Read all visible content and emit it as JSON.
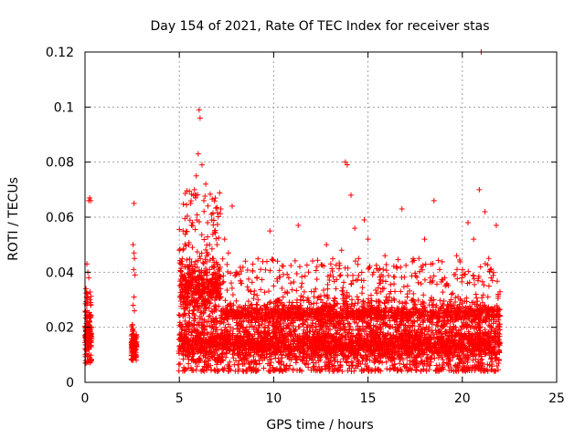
{
  "chart_data": {
    "type": "scatter",
    "title": "Day 154 of 2021, Rate Of TEC Index for receiver stas",
    "xlabel": "GPS time / hours",
    "ylabel": "ROTI / TECUs",
    "xlim": [
      0,
      25
    ],
    "ylim": [
      0,
      0.12
    ],
    "xticks": [
      0,
      5,
      10,
      15,
      20,
      25
    ],
    "yticks": [
      0,
      0.02,
      0.04,
      0.06,
      0.08,
      0.1,
      0.12
    ],
    "xtick_labels": [
      "0",
      "5",
      "10",
      "15",
      "20",
      "25"
    ],
    "ytick_labels": [
      "0",
      "0.02",
      "0.04",
      "0.06",
      "0.08",
      "0.1",
      "0.12"
    ],
    "grid": true,
    "marker": "+",
    "marker_color": "#ff0000",
    "series": [
      {
        "name": "ROTI",
        "points": [
          [
            0.05,
            0.034
          ],
          [
            0.08,
            0.031
          ],
          [
            0.1,
            0.026
          ],
          [
            0.12,
            0.022
          ],
          [
            0.15,
            0.019
          ],
          [
            0.18,
            0.014
          ],
          [
            0.2,
            0.012
          ],
          [
            0.22,
            0.01
          ],
          [
            0.25,
            0.009
          ],
          [
            0.28,
            0.008
          ],
          [
            0.1,
            0.043
          ],
          [
            0.15,
            0.04
          ],
          [
            0.2,
            0.038
          ],
          [
            0.25,
            0.03
          ],
          [
            0.3,
            0.028
          ],
          [
            0.2,
            0.066
          ],
          [
            0.25,
            0.067
          ],
          [
            0.3,
            0.066
          ],
          [
            0.12,
            0.016
          ],
          [
            0.18,
            0.018
          ],
          [
            0.24,
            0.015
          ],
          [
            0.3,
            0.013
          ],
          [
            2.55,
            0.05
          ],
          [
            2.6,
            0.047
          ],
          [
            2.62,
            0.045
          ],
          [
            2.58,
            0.041
          ],
          [
            2.65,
            0.039
          ],
          [
            2.6,
            0.031
          ],
          [
            2.55,
            0.028
          ],
          [
            2.62,
            0.026
          ],
          [
            2.6,
            0.065
          ],
          [
            2.52,
            0.019
          ],
          [
            2.56,
            0.016
          ],
          [
            2.6,
            0.014
          ],
          [
            2.64,
            0.012
          ],
          [
            2.68,
            0.01
          ],
          [
            2.58,
            0.009
          ],
          [
            2.66,
            0.013
          ],
          [
            2.7,
            0.017
          ],
          [
            5.0,
            0.048
          ],
          [
            5.1,
            0.035
          ],
          [
            5.2,
            0.055
          ],
          [
            5.3,
            0.042
          ],
          [
            5.4,
            0.031
          ],
          [
            5.5,
            0.05
          ],
          [
            5.6,
            0.065
          ],
          [
            5.7,
            0.058
          ],
          [
            5.8,
            0.07
          ],
          [
            5.9,
            0.075
          ],
          [
            6.0,
            0.083
          ],
          [
            6.05,
            0.099
          ],
          [
            6.1,
            0.096
          ],
          [
            6.2,
            0.079
          ],
          [
            6.3,
            0.066
          ],
          [
            6.4,
            0.072
          ],
          [
            6.5,
            0.058
          ],
          [
            6.6,
            0.05
          ],
          [
            6.7,
            0.061
          ],
          [
            6.8,
            0.045
          ],
          [
            6.9,
            0.038
          ],
          [
            7.0,
            0.05
          ],
          [
            7.2,
            0.063
          ],
          [
            7.4,
            0.052
          ],
          [
            7.6,
            0.047
          ],
          [
            7.8,
            0.064
          ],
          [
            8.0,
            0.04
          ],
          [
            8.3,
            0.036
          ],
          [
            8.5,
            0.044
          ],
          [
            8.8,
            0.033
          ],
          [
            5.1,
            0.018
          ],
          [
            5.3,
            0.015
          ],
          [
            5.5,
            0.021
          ],
          [
            5.7,
            0.013
          ],
          [
            5.9,
            0.017
          ],
          [
            6.1,
            0.024
          ],
          [
            6.3,
            0.019
          ],
          [
            6.5,
            0.014
          ],
          [
            6.7,
            0.022
          ],
          [
            6.9,
            0.016
          ],
          [
            7.1,
            0.012
          ],
          [
            7.3,
            0.018
          ],
          [
            7.5,
            0.015
          ],
          [
            7.7,
            0.02
          ],
          [
            7.9,
            0.013
          ],
          [
            8.1,
            0.017
          ],
          [
            8.3,
            0.014
          ],
          [
            8.5,
            0.019
          ],
          [
            8.7,
            0.012
          ],
          [
            8.9,
            0.016
          ],
          [
            9.2,
            0.022
          ],
          [
            9.5,
            0.028
          ],
          [
            9.8,
            0.055
          ],
          [
            10.0,
            0.035
          ],
          [
            10.2,
            0.044
          ],
          [
            10.5,
            0.031
          ],
          [
            10.8,
            0.038
          ],
          [
            11.0,
            0.029
          ],
          [
            11.3,
            0.057
          ],
          [
            11.5,
            0.036
          ],
          [
            11.8,
            0.027
          ],
          [
            12.0,
            0.033
          ],
          [
            12.3,
            0.042
          ],
          [
            12.5,
            0.03
          ],
          [
            12.8,
            0.05
          ],
          [
            13.0,
            0.039
          ],
          [
            13.3,
            0.034
          ],
          [
            13.6,
            0.048
          ],
          [
            13.8,
            0.08
          ],
          [
            13.9,
            0.079
          ],
          [
            14.1,
            0.068
          ],
          [
            14.3,
            0.056
          ],
          [
            14.5,
            0.045
          ],
          [
            14.8,
            0.059
          ],
          [
            15.0,
            0.052
          ],
          [
            15.3,
            0.04
          ],
          [
            15.6,
            0.036
          ],
          [
            15.9,
            0.046
          ],
          [
            16.2,
            0.033
          ],
          [
            16.5,
            0.042
          ],
          [
            16.8,
            0.063
          ],
          [
            17.1,
            0.035
          ],
          [
            17.4,
            0.03
          ],
          [
            17.7,
            0.045
          ],
          [
            18.0,
            0.052
          ],
          [
            18.3,
            0.038
          ],
          [
            18.5,
            0.066
          ],
          [
            18.8,
            0.041
          ],
          [
            19.1,
            0.035
          ],
          [
            19.4,
            0.03
          ],
          [
            19.7,
            0.046
          ],
          [
            20.0,
            0.039
          ],
          [
            20.3,
            0.058
          ],
          [
            20.6,
            0.052
          ],
          [
            20.9,
            0.07
          ],
          [
            21.0,
            0.12
          ],
          [
            21.2,
            0.062
          ],
          [
            21.4,
            0.045
          ],
          [
            21.6,
            0.037
          ],
          [
            21.8,
            0.057
          ],
          [
            21.9,
            0.032
          ],
          [
            9.1,
            0.015
          ],
          [
            9.4,
            0.011
          ],
          [
            9.7,
            0.018
          ],
          [
            10.0,
            0.014
          ],
          [
            10.3,
            0.021
          ],
          [
            10.6,
            0.013
          ],
          [
            10.9,
            0.017
          ],
          [
            11.2,
            0.009
          ],
          [
            11.5,
            0.016
          ],
          [
            11.8,
            0.02
          ],
          [
            12.1,
            0.012
          ],
          [
            12.4,
            0.018
          ],
          [
            12.7,
            0.015
          ],
          [
            13.0,
            0.022
          ],
          [
            13.3,
            0.011
          ],
          [
            13.6,
            0.017
          ],
          [
            13.9,
            0.014
          ],
          [
            14.2,
            0.019
          ],
          [
            14.5,
            0.012
          ],
          [
            14.8,
            0.016
          ],
          [
            15.1,
            0.008
          ],
          [
            15.4,
            0.018
          ],
          [
            15.7,
            0.013
          ],
          [
            16.0,
            0.021
          ],
          [
            16.3,
            0.011
          ],
          [
            16.6,
            0.015
          ],
          [
            16.9,
            0.019
          ],
          [
            17.2,
            0.012
          ],
          [
            17.5,
            0.017
          ],
          [
            17.8,
            0.014
          ],
          [
            18.1,
            0.02
          ],
          [
            18.4,
            0.011
          ],
          [
            18.7,
            0.016
          ],
          [
            19.0,
            0.013
          ],
          [
            19.3,
            0.018
          ],
          [
            19.6,
            0.012
          ],
          [
            19.9,
            0.016
          ],
          [
            20.2,
            0.021
          ],
          [
            20.5,
            0.014
          ],
          [
            20.8,
            0.018
          ],
          [
            21.1,
            0.011
          ],
          [
            21.4,
            0.016
          ],
          [
            21.7,
            0.013
          ],
          [
            21.9,
            0.019
          ]
        ]
      }
    ],
    "dense_bands": [
      {
        "x0": 0.0,
        "x1": 0.35,
        "ymin": 0.007,
        "ymax": 0.034,
        "n": 150,
        "peak": 0.018
      },
      {
        "x0": 2.45,
        "x1": 2.75,
        "ymin": 0.008,
        "ymax": 0.022,
        "n": 110,
        "peak": 0.014
      },
      {
        "x0": 4.95,
        "x1": 22.0,
        "ymin": 0.004,
        "ymax": 0.03,
        "n": 3400,
        "peak": 0.014
      },
      {
        "x0": 5.0,
        "x1": 7.2,
        "ymin": 0.02,
        "ymax": 0.07,
        "n": 520,
        "peak": 0.035
      },
      {
        "x0": 7.2,
        "x1": 22.0,
        "ymin": 0.02,
        "ymax": 0.045,
        "n": 1500,
        "peak": 0.025
      }
    ]
  }
}
